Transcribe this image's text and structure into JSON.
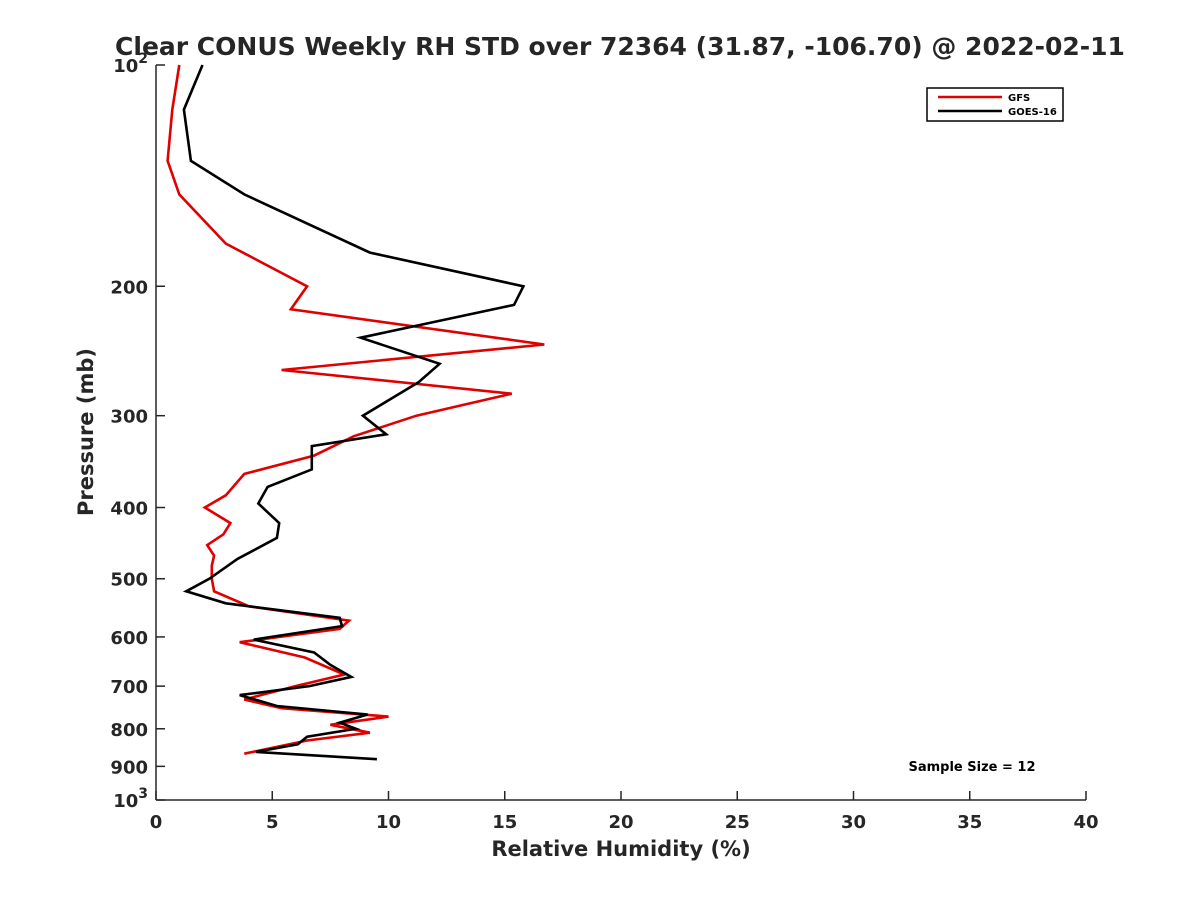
{
  "chart_data": {
    "type": "line",
    "title": "Clear CONUS Weekly RH STD over 72364 (31.87, -106.70) @ 2022-02-11",
    "xlabel": "Relative Humidity (%)",
    "ylabel": "Pressure (mb)",
    "xlim": [
      0,
      40
    ],
    "ylim": [
      100,
      1000
    ],
    "y_scale": "log",
    "y_reversed": true,
    "x_ticks": [
      0,
      5,
      10,
      15,
      20,
      25,
      30,
      35,
      40
    ],
    "y_ticks": [
      100,
      200,
      300,
      400,
      500,
      600,
      700,
      800,
      900,
      1000
    ],
    "y_tick_labels": [
      "10^2",
      "200",
      "300",
      "400",
      "500",
      "600",
      "700",
      "800",
      "900",
      "10^3"
    ],
    "grid": false,
    "legend_position": "top-right",
    "annotation": "Sample Size = 12",
    "series": [
      {
        "name": "GFS",
        "color": "#e00000",
        "points": [
          [
            1.0,
            100
          ],
          [
            0.7,
            115
          ],
          [
            0.5,
            135
          ],
          [
            1.0,
            150
          ],
          [
            3.0,
            175
          ],
          [
            6.5,
            200
          ],
          [
            5.8,
            215
          ],
          [
            16.7,
            240
          ],
          [
            5.4,
            260
          ],
          [
            15.3,
            280
          ],
          [
            11.2,
            300
          ],
          [
            8.5,
            320
          ],
          [
            6.8,
            340
          ],
          [
            3.8,
            360
          ],
          [
            3.0,
            385
          ],
          [
            2.1,
            400
          ],
          [
            3.2,
            420
          ],
          [
            2.9,
            435
          ],
          [
            2.2,
            450
          ],
          [
            2.5,
            465
          ],
          [
            2.4,
            480
          ],
          [
            2.4,
            500
          ],
          [
            2.5,
            520
          ],
          [
            4.0,
            545
          ],
          [
            8.3,
            570
          ],
          [
            7.9,
            585
          ],
          [
            3.6,
            610
          ],
          [
            6.4,
            640
          ],
          [
            8.1,
            675
          ],
          [
            6.0,
            700
          ],
          [
            3.8,
            730
          ],
          [
            5.4,
            750
          ],
          [
            10.0,
            770
          ],
          [
            7.5,
            790
          ],
          [
            9.2,
            810
          ],
          [
            6.5,
            830
          ],
          [
            3.8,
            865
          ]
        ]
      },
      {
        "name": "GOES-16",
        "color": "#000000",
        "points": [
          [
            2.0,
            100
          ],
          [
            1.2,
            115
          ],
          [
            1.5,
            135
          ],
          [
            3.8,
            150
          ],
          [
            9.2,
            180
          ],
          [
            15.8,
            200
          ],
          [
            15.4,
            212
          ],
          [
            8.8,
            235
          ],
          [
            12.2,
            255
          ],
          [
            11.3,
            270
          ],
          [
            8.9,
            300
          ],
          [
            9.9,
            318
          ],
          [
            6.7,
            330
          ],
          [
            6.7,
            355
          ],
          [
            4.8,
            375
          ],
          [
            4.4,
            395
          ],
          [
            5.3,
            420
          ],
          [
            5.2,
            440
          ],
          [
            3.5,
            470
          ],
          [
            2.3,
            500
          ],
          [
            1.3,
            520
          ],
          [
            3.0,
            540
          ],
          [
            7.9,
            565
          ],
          [
            8.0,
            580
          ],
          [
            4.2,
            605
          ],
          [
            6.8,
            630
          ],
          [
            7.5,
            655
          ],
          [
            8.4,
            680
          ],
          [
            6.6,
            700
          ],
          [
            3.6,
            720
          ],
          [
            5.2,
            745
          ],
          [
            9.1,
            765
          ],
          [
            7.9,
            785
          ],
          [
            8.6,
            800
          ],
          [
            6.5,
            820
          ],
          [
            6.1,
            840
          ],
          [
            4.3,
            860
          ],
          [
            9.5,
            880
          ]
        ]
      }
    ]
  }
}
